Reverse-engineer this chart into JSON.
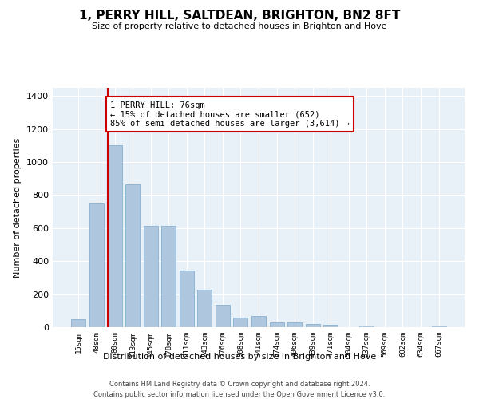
{
  "title": "1, PERRY HILL, SALTDEAN, BRIGHTON, BN2 8FT",
  "subtitle": "Size of property relative to detached houses in Brighton and Hove",
  "xlabel": "Distribution of detached houses by size in Brighton and Hove",
  "ylabel": "Number of detached properties",
  "categories": [
    "15sqm",
    "48sqm",
    "80sqm",
    "113sqm",
    "145sqm",
    "178sqm",
    "211sqm",
    "243sqm",
    "276sqm",
    "308sqm",
    "341sqm",
    "374sqm",
    "406sqm",
    "439sqm",
    "471sqm",
    "504sqm",
    "537sqm",
    "569sqm",
    "602sqm",
    "634sqm",
    "667sqm"
  ],
  "values": [
    50,
    750,
    1100,
    865,
    615,
    615,
    345,
    225,
    135,
    60,
    70,
    30,
    30,
    20,
    15,
    0,
    10,
    0,
    0,
    0,
    10
  ],
  "bar_color": "#aec6de",
  "bar_edgecolor": "#7aa8cc",
  "vline_color": "#cc0000",
  "vline_x_index": 2,
  "annotation_text": "1 PERRY HILL: 76sqm\n← 15% of detached houses are smaller (652)\n85% of semi-detached houses are larger (3,614) →",
  "annotation_box_edgecolor": "#cc0000",
  "ylim": [
    0,
    1450
  ],
  "yticks": [
    0,
    200,
    400,
    600,
    800,
    1000,
    1200,
    1400
  ],
  "bg_color": "#e8f0f8",
  "grid_color": "#ffffff",
  "footer_line1": "Contains HM Land Registry data © Crown copyright and database right 2024.",
  "footer_line2": "Contains public sector information licensed under the Open Government Licence v3.0."
}
